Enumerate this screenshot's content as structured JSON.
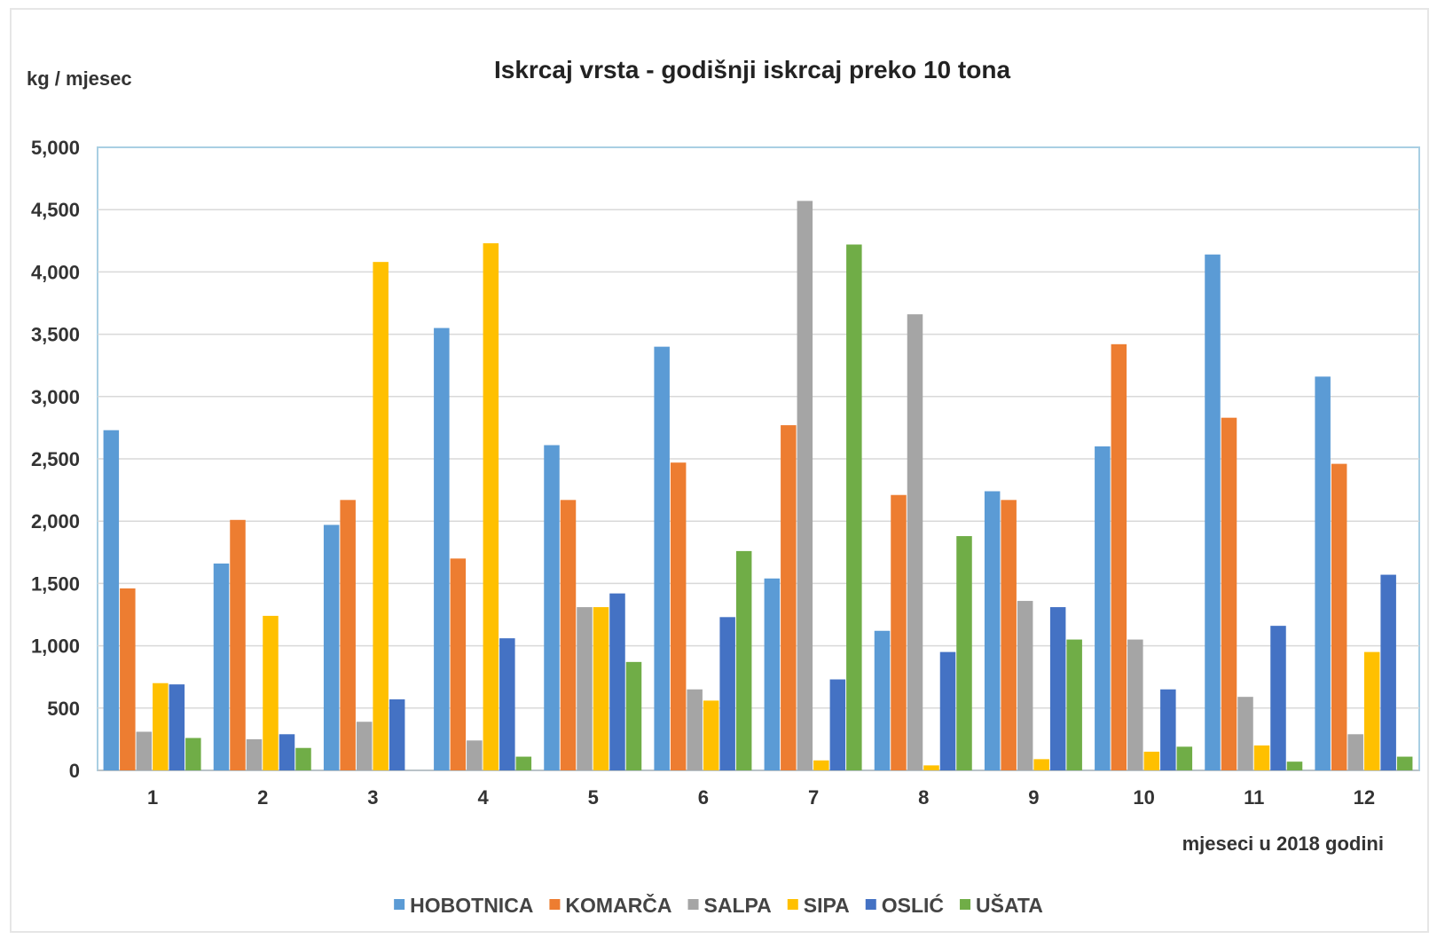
{
  "chart_data": {
    "type": "bar",
    "title": "Iskrcaj vrsta - godišnji iskrcaj preko 10 tona",
    "ylabel": "kg / mjesec",
    "xlabel": "mjeseci u 2018 godini",
    "ylim": [
      0,
      5000
    ],
    "yticks": [
      "0",
      "500",
      "1,000",
      "1,500",
      "2,000",
      "2,500",
      "3,000",
      "3,500",
      "4,000",
      "4,500",
      "5,000"
    ],
    "categories": [
      "1",
      "2",
      "3",
      "4",
      "5",
      "6",
      "7",
      "8",
      "9",
      "10",
      "11",
      "12"
    ],
    "grid": true,
    "legend_position": "bottom",
    "series": [
      {
        "name": "HOBOTNICA",
        "color": "#5B9BD5",
        "values": [
          2730,
          1660,
          1970,
          3550,
          2610,
          3400,
          1540,
          1120,
          2240,
          2600,
          4140,
          3160
        ]
      },
      {
        "name": "KOMARČA",
        "color": "#ED7D31",
        "values": [
          1460,
          2010,
          2170,
          1700,
          2170,
          2470,
          2770,
          2210,
          2170,
          3420,
          2830,
          2460
        ]
      },
      {
        "name": "SALPA",
        "color": "#A5A5A5",
        "values": [
          310,
          250,
          390,
          240,
          1310,
          650,
          4570,
          3660,
          1360,
          1050,
          590,
          290
        ]
      },
      {
        "name": "SIPA",
        "color": "#FFC000",
        "values": [
          700,
          1240,
          4080,
          4230,
          1310,
          560,
          80,
          40,
          90,
          150,
          200,
          950
        ]
      },
      {
        "name": "OSLIĆ",
        "color": "#4472C4",
        "values": [
          690,
          290,
          570,
          1060,
          1420,
          1230,
          730,
          950,
          1310,
          650,
          1160,
          1570
        ]
      },
      {
        "name": "UŠATA",
        "color": "#70AD47",
        "values": [
          260,
          180,
          0,
          110,
          870,
          1760,
          4220,
          1880,
          1050,
          190,
          70,
          110
        ]
      }
    ]
  }
}
